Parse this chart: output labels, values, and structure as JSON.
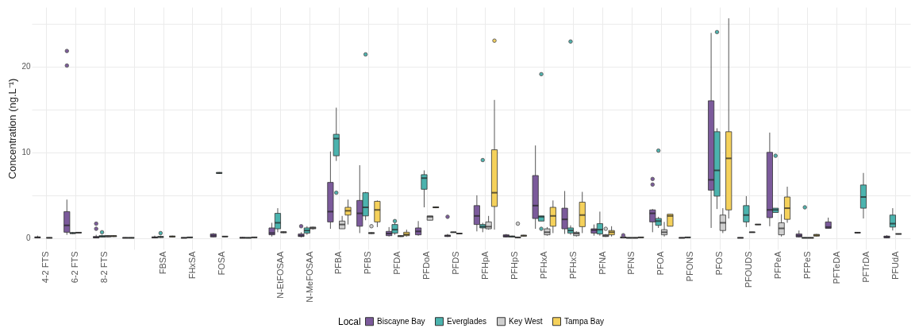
{
  "chart_data": {
    "type": "box",
    "ylabel": "Concentration (ng.L⁻¹)",
    "legend_title": "Local",
    "legend": "bottom",
    "grid": true,
    "categories": [
      "4-2 FTS",
      "6-2 FTS",
      "8-2 FTS",
      null,
      "FBSA",
      "FHxSA",
      "FOSA",
      null,
      "N-EtFOSAA",
      "N-MeFOSAA",
      "PFBA",
      "PFBS",
      "PFDA",
      "PFDoA",
      "PFDS",
      "PFHpA",
      "PFHpS",
      "PFHxA",
      "PFHxS",
      "PFNA",
      "PFNS",
      "PFOA",
      "PFONS",
      "PFOS",
      "PFOUDS",
      "PFPeA",
      "PFPeS",
      "PFTeDA",
      "PFTrDA",
      "PFUdA"
    ],
    "ylim": [
      -1.3,
      26.9
    ],
    "yticks": [
      0,
      {
        "value": 5,
        "label": null
      },
      10,
      {
        "value": 15,
        "label": null
      },
      20,
      {
        "value": 25,
        "label": null
      }
    ],
    "series": [
      {
        "name": "Biscayne Bay",
        "color": "#7b5a9b",
        "boxes": [
          {
            "low": 0,
            "q1": 0.05,
            "median": 0.1,
            "q3": 0.15,
            "high": 0.3
          },
          {
            "low": 0.4,
            "q1": 0.7,
            "median": 1.5,
            "q3": 3.1,
            "high": 4.5,
            "outliers": [
              20.1,
              21.8
            ]
          },
          {
            "low": 0,
            "q1": 0.05,
            "median": 0.1,
            "q3": 0.2,
            "high": 0.4,
            "outliers": [
              1.1,
              1.7
            ]
          },
          {
            "low": 0,
            "q1": 0.02,
            "median": 0.05,
            "q3": 0.08,
            "high": 0.1
          },
          {
            "low": 0,
            "q1": 0.05,
            "median": 0.1,
            "q3": 0.15,
            "high": 0.3
          },
          {
            "low": 0,
            "q1": 0.02,
            "median": 0.05,
            "q3": 0.08,
            "high": 0.1
          },
          {
            "low": 0.1,
            "q1": 0.15,
            "median": 0.3,
            "q3": 0.5,
            "high": 0.6
          },
          {
            "low": 0,
            "q1": 0.02,
            "median": 0.05,
            "q3": 0.1,
            "high": 0.15
          },
          {
            "low": 0.2,
            "q1": 0.4,
            "median": 0.6,
            "q3": 1.2,
            "high": 1.8
          },
          {
            "low": 0.1,
            "q1": 0.2,
            "median": 0.3,
            "q3": 0.5,
            "high": 0.7,
            "outliers": [
              1.4
            ]
          },
          {
            "low": 1.1,
            "q1": 1.9,
            "median": 3.1,
            "q3": 6.5,
            "high": 10.1
          },
          {
            "low": 0.6,
            "q1": 1.4,
            "median": 2.9,
            "q3": 4.4,
            "high": 8.5
          },
          {
            "low": 0.2,
            "q1": 0.3,
            "median": 0.55,
            "q3": 0.8,
            "high": 1.3
          },
          {
            "low": 0.3,
            "q1": 0.4,
            "median": 0.8,
            "q3": 1.2,
            "high": 2.0
          },
          {
            "low": 0.15,
            "q1": 0.2,
            "median": 0.3,
            "q3": 0.35,
            "high": 0.5,
            "outliers": [
              2.5
            ]
          },
          {
            "low": 0.8,
            "q1": 1.6,
            "median": 2.6,
            "q3": 3.8,
            "high": 5.0
          },
          {
            "low": 0.1,
            "q1": 0.15,
            "median": 0.25,
            "q3": 0.4,
            "high": 0.5
          },
          {
            "low": 1.1,
            "q1": 2.3,
            "median": 3.8,
            "q3": 7.3,
            "high": 10.8
          },
          {
            "low": 0.5,
            "q1": 1.1,
            "median": 2.2,
            "q3": 3.5,
            "high": 5.5
          },
          {
            "low": 0.3,
            "q1": 0.6,
            "median": 0.95,
            "q3": 1.1,
            "high": 1.6
          },
          {
            "low": 0,
            "q1": 0.05,
            "median": 0.1,
            "q3": 0.15,
            "high": 0.2,
            "outliers": [
              0.35
            ]
          },
          {
            "low": 0.7,
            "q1": 1.9,
            "median": 2.9,
            "q3": 3.3,
            "high": 3.4,
            "outliers": [
              6.25,
              6.9
            ]
          },
          {
            "low": 0,
            "q1": 0.02,
            "median": 0.05,
            "q3": 0.08,
            "high": 0.1
          },
          {
            "low": 1.2,
            "q1": 5.6,
            "median": 6.8,
            "q3": 16.0,
            "high": 23.9
          },
          {
            "low": 0,
            "q1": 0.02,
            "median": 0.05,
            "q3": 0.08,
            "high": 0.1
          },
          {
            "low": 1.4,
            "q1": 2.4,
            "median": 3.3,
            "q3": 10.0,
            "high": 12.3
          },
          {
            "low": 0.1,
            "q1": 0.15,
            "median": 0.3,
            "q3": 0.5,
            "high": 0.9
          },
          {
            "low": 1.15,
            "q1": 1.15,
            "median": 1.3,
            "q3": 1.9,
            "high": 2.4
          },
          {
            "low": 0.6,
            "q1": 0.62,
            "median": 0.65,
            "q3": 0.68,
            "high": 0.7
          },
          {
            "low": 0,
            "q1": 0.05,
            "median": 0.15,
            "q3": 0.25,
            "high": 0.35
          }
        ]
      },
      {
        "name": "Everglades",
        "color": "#4bb3ae",
        "boxes": [
          null,
          {
            "low": 0.5,
            "q1": 0.55,
            "median": 0.6,
            "q3": 0.65,
            "high": 0.7
          },
          {
            "low": 0.1,
            "q1": 0.15,
            "median": 0.2,
            "q3": 0.3,
            "high": 0.4,
            "outliers": [
              0.7
            ]
          },
          {
            "low": 0,
            "q1": 0.02,
            "median": 0.05,
            "q3": 0.08,
            "high": 0.1
          },
          {
            "low": 0.05,
            "q1": 0.1,
            "median": 0.15,
            "q3": 0.2,
            "high": 0.3,
            "outliers": [
              0.6
            ]
          },
          {
            "low": 0.05,
            "q1": 0.08,
            "median": 0.1,
            "q3": 0.12,
            "high": 0.15
          },
          {
            "low": 7.5,
            "q1": 7.55,
            "median": 7.6,
            "q3": 7.65,
            "high": 7.7
          },
          {
            "low": 0,
            "q1": 0.02,
            "median": 0.05,
            "q3": 0.08,
            "high": 0.1
          },
          {
            "low": 0.7,
            "q1": 1.1,
            "median": 1.8,
            "q3": 2.9,
            "high": 3.5
          },
          {
            "low": 0.4,
            "q1": 0.6,
            "median": 0.9,
            "q3": 1.2,
            "high": 1.4
          },
          {
            "low": 9.0,
            "q1": 9.6,
            "median": 11.6,
            "q3": 12.1,
            "high": 15.2,
            "outliers": [
              5.3
            ]
          },
          {
            "low": 2.1,
            "q1": 2.6,
            "median": 3.6,
            "q3": 5.3,
            "high": 5.4,
            "outliers": [
              21.4
            ]
          },
          {
            "low": 0.4,
            "q1": 0.6,
            "median": 1.0,
            "q3": 1.6,
            "high": 1.8,
            "outliers": [
              2.0
            ]
          },
          {
            "low": 3.6,
            "q1": 5.7,
            "median": 7.0,
            "q3": 7.4,
            "high": 7.9
          },
          {
            "low": 0.65,
            "q1": 0.68,
            "median": 0.7,
            "q3": 0.72,
            "high": 0.75
          },
          {
            "low": 0.7,
            "q1": 1.2,
            "median": 1.35,
            "q3": 1.6,
            "high": 1.8,
            "outliers": [
              9.1
            ]
          },
          {
            "low": 0.1,
            "q1": 0.15,
            "median": 0.2,
            "q3": 0.25,
            "high": 0.3
          },
          {
            "low": 2.0,
            "q1": 2.0,
            "median": 2.5,
            "q3": 2.6,
            "high": 2.6,
            "outliers": [
              1.1,
              19.1
            ]
          },
          {
            "low": 0.4,
            "q1": 0.6,
            "median": 0.9,
            "q3": 1.2,
            "high": 1.5,
            "outliers": [
              22.9
            ]
          },
          {
            "low": 0.3,
            "q1": 0.5,
            "median": 1.0,
            "q3": 1.7,
            "high": 3.1
          },
          {
            "low": 0,
            "q1": 0.02,
            "median": 0.05,
            "q3": 0.08,
            "high": 0.1
          },
          {
            "low": 1.2,
            "q1": 1.5,
            "median": 2.0,
            "q3": 2.3,
            "high": 2.5,
            "outliers": [
              10.2
            ]
          },
          {
            "low": 0.05,
            "q1": 0.08,
            "median": 0.1,
            "q3": 0.12,
            "high": 0.15
          },
          {
            "low": 3.4,
            "q1": 4.9,
            "median": 7.9,
            "q3": 12.4,
            "high": 12.8,
            "outliers": [
              24.0
            ]
          },
          {
            "low": 1.3,
            "q1": 1.9,
            "median": 2.7,
            "q3": 3.8,
            "high": 4.9
          },
          {
            "low": 3.0,
            "q1": 3.0,
            "median": 3.3,
            "q3": 3.5,
            "high": 3.5,
            "outliers": [
              9.6
            ]
          },
          {
            "low": 0,
            "q1": 0.02,
            "median": 0.05,
            "q3": 0.08,
            "high": 0.1,
            "outliers": [
              3.6
            ]
          },
          null,
          {
            "low": 2.3,
            "q1": 3.5,
            "median": 4.8,
            "q3": 6.2,
            "high": 7.6
          },
          {
            "low": 0.9,
            "q1": 1.3,
            "median": 1.7,
            "q3": 2.7,
            "high": 3.5
          }
        ]
      },
      {
        "name": "Key West",
        "color": "#cfcfcf",
        "boxes": [
          {
            "low": 0,
            "q1": 0.02,
            "median": 0.05,
            "q3": 0.08,
            "high": 0.1
          },
          {
            "low": 0.6,
            "q1": 0.62,
            "median": 0.65,
            "q3": 0.68,
            "high": 0.7
          },
          {
            "low": 0.1,
            "q1": 0.15,
            "median": 0.25,
            "q3": 0.3,
            "high": 0.35
          },
          null,
          null,
          null,
          {
            "low": 0.15,
            "q1": 0.18,
            "median": 0.2,
            "q3": 0.22,
            "high": 0.25
          },
          {
            "low": 0.05,
            "q1": 0.08,
            "median": 0.1,
            "q3": 0.12,
            "high": 0.15
          },
          {
            "low": 0.6,
            "q1": 0.65,
            "median": 0.7,
            "q3": 0.75,
            "high": 0.8
          },
          {
            "low": 1.0,
            "q1": 1.1,
            "median": 1.2,
            "q3": 1.3,
            "high": 1.35
          },
          {
            "low": 1.1,
            "q1": 1.1,
            "median": 1.6,
            "q3": 2.0,
            "high": 2.6
          },
          {
            "low": 0.5,
            "q1": 0.55,
            "median": 0.6,
            "q3": 0.65,
            "high": 0.7,
            "outliers": [
              1.4
            ]
          },
          {
            "low": 0.15,
            "q1": 0.2,
            "median": 0.25,
            "q3": 0.3,
            "high": 0.35
          },
          {
            "low": 2.1,
            "q1": 2.1,
            "median": 2.5,
            "q3": 2.6,
            "high": 2.6
          },
          {
            "low": 0.5,
            "q1": 0.52,
            "median": 0.55,
            "q3": 0.58,
            "high": 0.6
          },
          {
            "low": 1.0,
            "q1": 1.1,
            "median": 1.35,
            "q3": 1.9,
            "high": 2.6
          },
          {
            "low": 0.05,
            "q1": 0.08,
            "median": 0.1,
            "q3": 0.12,
            "high": 0.15,
            "outliers": [
              1.7
            ]
          },
          {
            "low": 0.3,
            "q1": 0.4,
            "median": 0.7,
            "q3": 1.1,
            "high": 1.3
          },
          {
            "low": 0.2,
            "q1": 0.3,
            "median": 0.55,
            "q3": 0.7,
            "high": 0.8
          },
          {
            "low": 0.15,
            "q1": 0.2,
            "median": 0.3,
            "q3": 0.4,
            "high": 0.5,
            "outliers": [
              1.1
            ]
          },
          {
            "low": 0,
            "q1": 0.02,
            "median": 0.05,
            "q3": 0.08,
            "high": 0.1
          },
          {
            "low": 0.2,
            "q1": 0.4,
            "median": 0.7,
            "q3": 1.0,
            "high": 1.9
          },
          null,
          {
            "low": 0.6,
            "q1": 0.9,
            "median": 1.8,
            "q3": 2.7,
            "high": 3.5
          },
          {
            "low": 0.65,
            "q1": 0.68,
            "median": 0.7,
            "q3": 0.72,
            "high": 0.75
          },
          {
            "low": 0.2,
            "q1": 0.4,
            "median": 1.15,
            "q3": 1.8,
            "high": 2.8
          },
          {
            "low": 0,
            "q1": 0.02,
            "median": 0.05,
            "q3": 0.08,
            "high": 0.1
          },
          null,
          null,
          {
            "low": 0.45,
            "q1": 0.48,
            "median": 0.5,
            "q3": 0.52,
            "high": 0.55
          }
        ]
      },
      {
        "name": "Tampa Bay",
        "color": "#f5d15b",
        "boxes": [
          null,
          null,
          {
            "low": 0.15,
            "q1": 0.2,
            "median": 0.25,
            "q3": 0.3,
            "high": 0.35
          },
          null,
          {
            "low": 0.1,
            "q1": 0.15,
            "median": 0.2,
            "q3": 0.25,
            "high": 0.3
          },
          null,
          null,
          null,
          null,
          null,
          {
            "low": 1.6,
            "q1": 2.7,
            "median": 3.2,
            "q3": 3.6,
            "high": 4.5
          },
          {
            "low": 1.3,
            "q1": 1.9,
            "median": 3.3,
            "q3": 4.3,
            "high": 4.4
          },
          {
            "low": 0.2,
            "q1": 0.3,
            "median": 0.45,
            "q3": 0.7,
            "high": 1.0
          },
          {
            "low": 3.5,
            "q1": 3.55,
            "median": 3.6,
            "q3": 3.65,
            "high": 3.7
          },
          null,
          {
            "low": 1.0,
            "q1": 3.7,
            "median": 5.3,
            "q3": 10.3,
            "high": 16.1,
            "outliers": [
              23.0
            ]
          },
          {
            "low": 0.2,
            "q1": 0.25,
            "median": 0.3,
            "q3": 0.35,
            "high": 0.4
          },
          {
            "low": 0.6,
            "q1": 1.4,
            "median": 2.6,
            "q3": 3.6,
            "high": 4.4
          },
          {
            "low": 0.6,
            "q1": 1.35,
            "median": 2.7,
            "q3": 4.2,
            "high": 5.4
          },
          {
            "low": 0.2,
            "q1": 0.4,
            "median": 0.7,
            "q3": 0.9,
            "high": 1.4
          },
          {
            "low": 0.05,
            "q1": 0.08,
            "median": 0.1,
            "q3": 0.12,
            "high": 0.15
          },
          {
            "low": 1.4,
            "q1": 1.4,
            "median": 2.6,
            "q3": 2.8,
            "high": 2.8
          },
          null,
          {
            "low": 2.3,
            "q1": 3.3,
            "median": 9.3,
            "q3": 12.4,
            "high": 25.6
          },
          {
            "low": 1.55,
            "q1": 1.58,
            "median": 1.6,
            "q3": 1.62,
            "high": 1.65
          },
          {
            "low": 1.8,
            "q1": 2.2,
            "median": 3.5,
            "q3": 4.8,
            "high": 6.0
          },
          {
            "low": 0.2,
            "q1": 0.25,
            "median": 0.35,
            "q3": 0.45,
            "high": 0.5
          },
          null,
          null,
          null
        ]
      }
    ]
  }
}
